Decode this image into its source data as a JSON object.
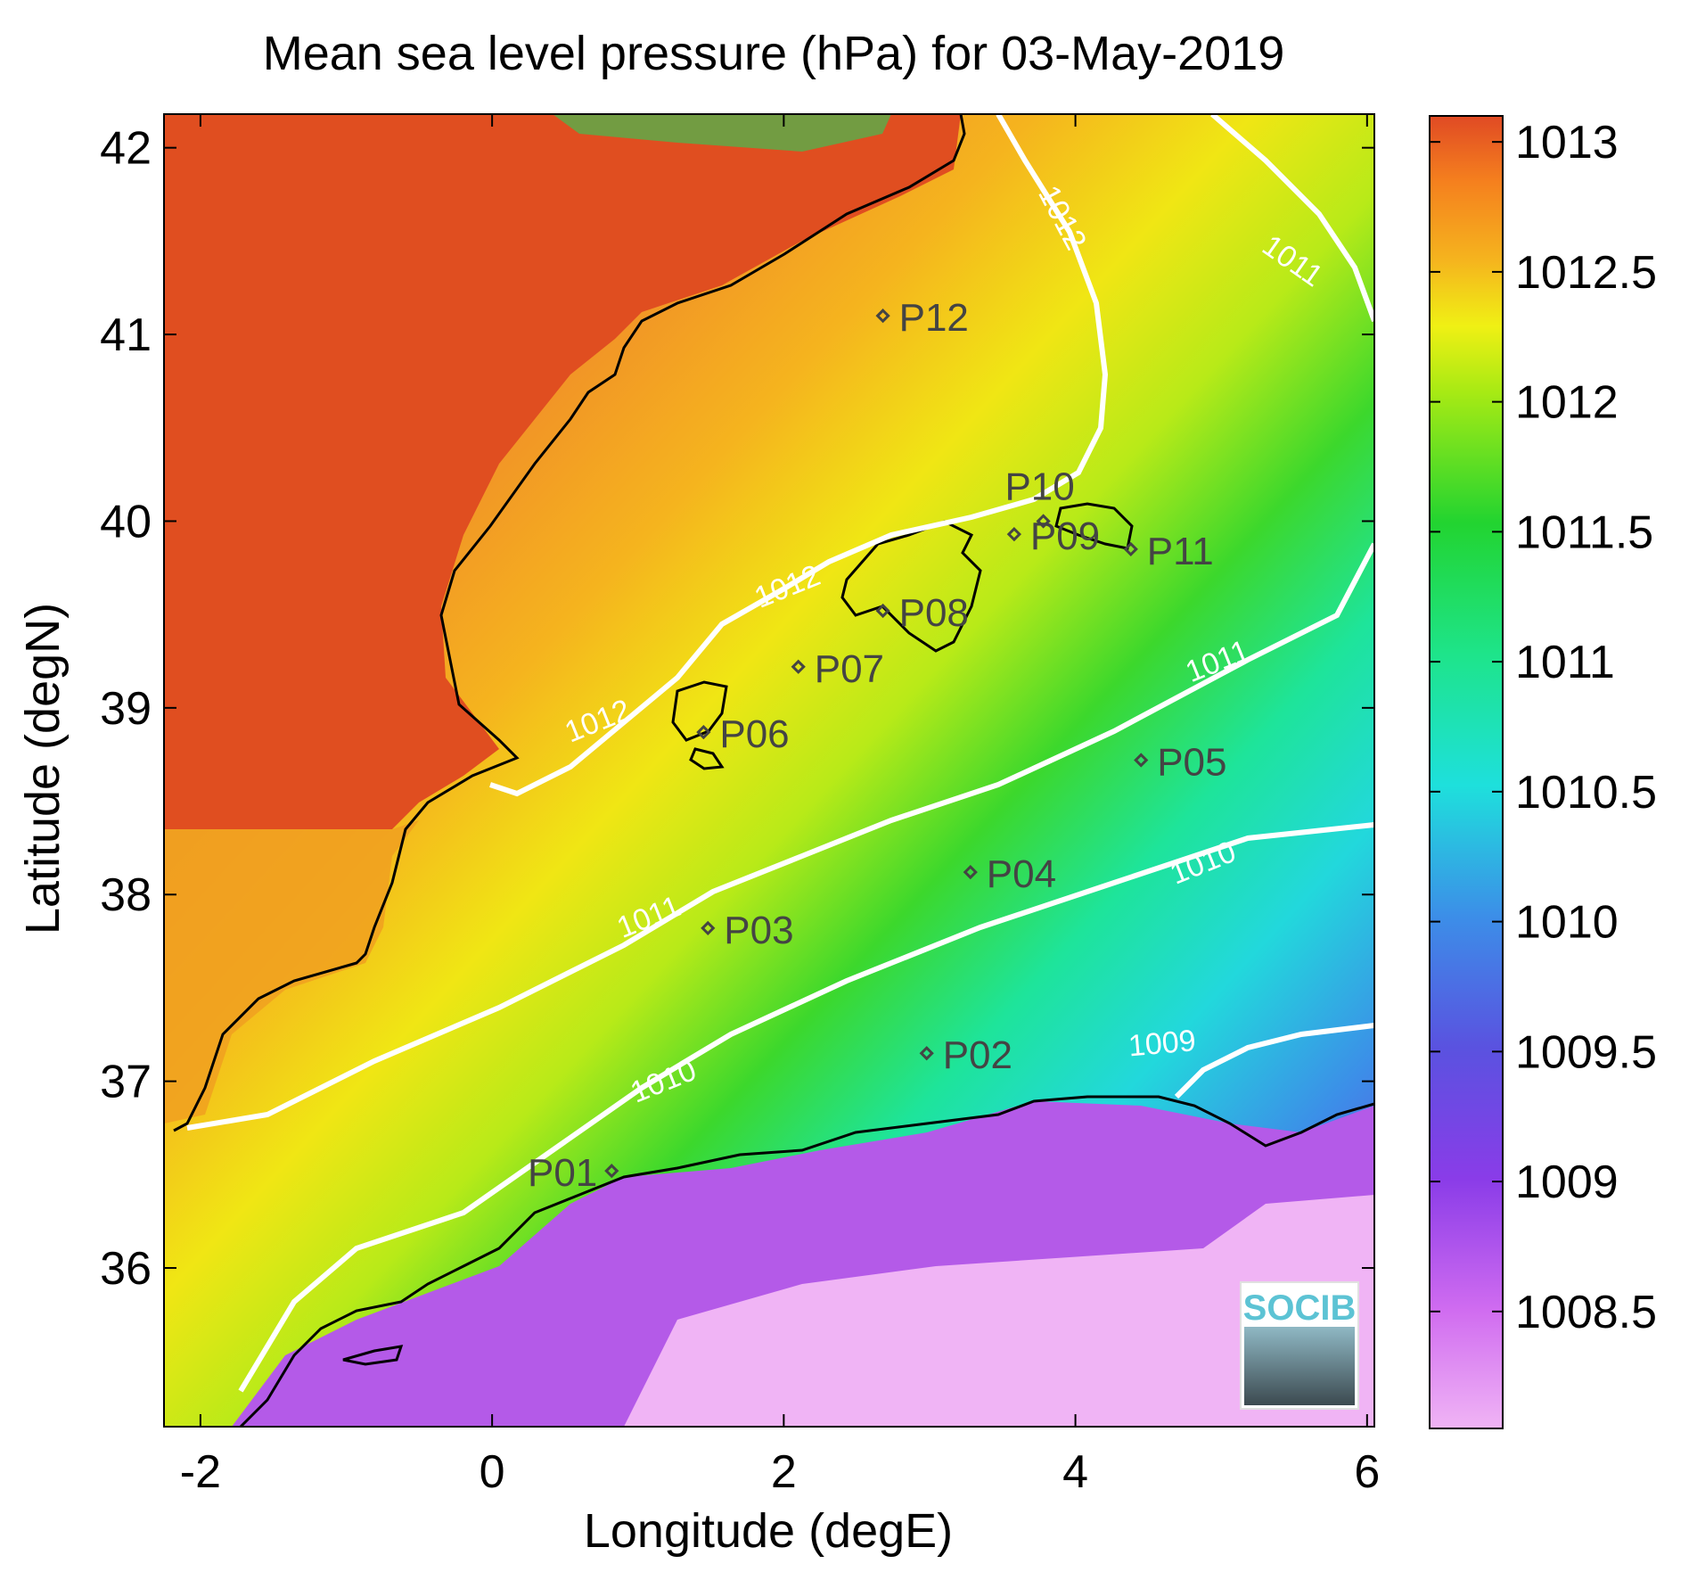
{
  "title": "Mean sea level pressure (hPa) for 03-May-2019",
  "axes": {
    "xlabel": "Longitude (degE)",
    "ylabel": "Latitude (degN)",
    "xlim": [
      -2.25,
      6.05
    ],
    "ylim": [
      35.15,
      42.18
    ],
    "xticks": [
      "-2",
      "0",
      "2",
      "4",
      "6"
    ],
    "xtick_values": [
      -2,
      0,
      2,
      4,
      6
    ],
    "yticks": [
      "36",
      "37",
      "38",
      "39",
      "40",
      "41",
      "42"
    ],
    "ytick_values": [
      36,
      37,
      38,
      39,
      40,
      41,
      42
    ]
  },
  "colorbar": {
    "min": 1008.05,
    "max": 1013.1,
    "labels": [
      "1013",
      "1012.5",
      "1012",
      "1011.5",
      "1011",
      "1010.5",
      "1010",
      "1009.5",
      "1009",
      "1008.5"
    ],
    "values": [
      1013,
      1012.5,
      1012,
      1011.5,
      1011,
      1010.5,
      1010,
      1009.5,
      1009,
      1008.5
    ],
    "colors": [
      "#f0b4f5",
      "#b93cf0",
      "#6a3fe0",
      "#3f74e6",
      "#1ed6d6",
      "#1ee88a",
      "#22d430",
      "#c8ee10",
      "#f5c80a",
      "#f5801e",
      "#e04a24"
    ]
  },
  "contours": [
    {
      "label": "1009",
      "x": 4.6,
      "y": 37.15
    },
    {
      "label": "1010",
      "x": 1.2,
      "y": 36.95
    },
    {
      "label": "1010",
      "x": 4.9,
      "y": 38.12
    },
    {
      "label": "1011",
      "x": 1.1,
      "y": 37.83
    },
    {
      "label": "1011",
      "x": 5.0,
      "y": 39.2
    },
    {
      "label": "1011",
      "x": 5.45,
      "y": 41.35
    },
    {
      "label": "1012",
      "x": 0.75,
      "y": 38.88
    },
    {
      "label": "1012",
      "x": 2.05,
      "y": 39.6
    },
    {
      "label": "1012",
      "x": 3.85,
      "y": 41.6
    }
  ],
  "stations": [
    {
      "id": "P01",
      "lon": 0.82,
      "lat": 36.52
    },
    {
      "id": "P02",
      "lon": 2.98,
      "lat": 37.15
    },
    {
      "id": "P03",
      "lon": 1.48,
      "lat": 37.82
    },
    {
      "id": "P04",
      "lon": 3.28,
      "lat": 38.12
    },
    {
      "id": "P05",
      "lon": 4.45,
      "lat": 38.72
    },
    {
      "id": "P06",
      "lon": 1.45,
      "lat": 38.87
    },
    {
      "id": "P07",
      "lon": 2.1,
      "lat": 39.22
    },
    {
      "id": "P08",
      "lon": 2.68,
      "lat": 39.52
    },
    {
      "id": "P09",
      "lon": 3.58,
      "lat": 39.93
    },
    {
      "id": "P10",
      "lon": 3.78,
      "lat": 40.0
    },
    {
      "id": "P11",
      "lon": 4.38,
      "lat": 39.85
    },
    {
      "id": "P12",
      "lon": 2.68,
      "lat": 41.1
    }
  ],
  "logo": {
    "text": "SOCIB"
  }
}
